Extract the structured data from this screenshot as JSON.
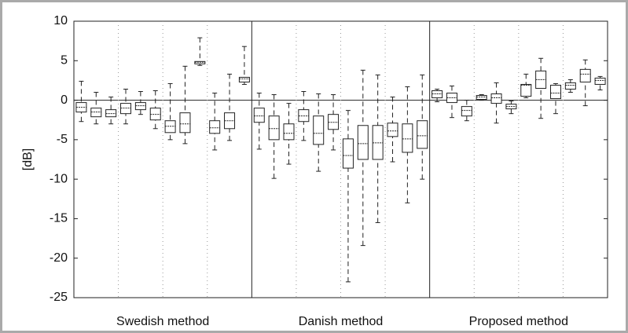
{
  "chart_data": {
    "type": "box",
    "ylabel": "[dB]",
    "ylim": [
      -25,
      10
    ],
    "yticks": [
      -25,
      -20,
      -15,
      -10,
      -5,
      0,
      5,
      10
    ],
    "reference_line": 0,
    "groups": [
      {
        "name": "Swedish method",
        "boxes": [
          {
            "min": -2.7,
            "q1": -1.5,
            "median": -0.9,
            "q3": -0.3,
            "max": 2.4
          },
          {
            "min": -3.0,
            "q1": -2.1,
            "median": -1.5,
            "q3": -1.0,
            "max": 1.0
          },
          {
            "min": -3.0,
            "q1": -2.1,
            "median": -1.7,
            "q3": -1.2,
            "max": 0.4
          },
          {
            "min": -3.0,
            "q1": -1.7,
            "median": -1.0,
            "q3": -0.4,
            "max": 1.4
          },
          {
            "min": -1.8,
            "q1": -1.2,
            "median": -0.7,
            "q3": -0.3,
            "max": 1.1
          },
          {
            "min": -3.6,
            "q1": -2.5,
            "median": -1.8,
            "q3": -1.0,
            "max": 1.2
          },
          {
            "min": -5.0,
            "q1": -4.1,
            "median": -3.3,
            "q3": -2.6,
            "max": 2.1
          },
          {
            "min": -5.5,
            "q1": -4.1,
            "median": -3.0,
            "q3": -1.6,
            "max": 4.3
          },
          {
            "min": 4.4,
            "q1": 4.6,
            "median": 4.8,
            "q3": 4.9,
            "max": 7.9
          },
          {
            "min": -6.3,
            "q1": -4.2,
            "median": -3.5,
            "q3": -2.6,
            "max": 0.9
          },
          {
            "min": -5.1,
            "q1": -3.6,
            "median": -2.6,
            "q3": -1.6,
            "max": 3.3
          },
          {
            "min": 2.0,
            "q1": 2.3,
            "median": 2.7,
            "q3": 2.9,
            "max": 6.8
          }
        ]
      },
      {
        "name": "Danish method",
        "boxes": [
          {
            "min": -6.2,
            "q1": -2.8,
            "median": -2.0,
            "q3": -1.0,
            "max": 0.9
          },
          {
            "min": -9.9,
            "q1": -5.0,
            "median": -3.6,
            "q3": -2.0,
            "max": 0.7
          },
          {
            "min": -8.1,
            "q1": -5.0,
            "median": -4.2,
            "q3": -3.0,
            "max": -0.4
          },
          {
            "min": -5.1,
            "q1": -2.7,
            "median": -2.0,
            "q3": -1.2,
            "max": 1.1
          },
          {
            "min": -9.0,
            "q1": -5.6,
            "median": -4.2,
            "q3": -2.0,
            "max": 0.8
          },
          {
            "min": -6.3,
            "q1": -3.7,
            "median": -2.8,
            "q3": -1.8,
            "max": 0.7
          },
          {
            "min": -23.0,
            "q1": -8.6,
            "median": -7.0,
            "q3": -4.9,
            "max": -1.3
          },
          {
            "min": -18.4,
            "q1": -7.5,
            "median": -5.5,
            "q3": -3.2,
            "max": 3.8
          },
          {
            "min": -15.5,
            "q1": -7.5,
            "median": -5.4,
            "q3": -3.2,
            "max": 3.2
          },
          {
            "min": -7.8,
            "q1": -4.6,
            "median": -3.9,
            "q3": -2.9,
            "max": 0.4
          },
          {
            "min": -13.0,
            "q1": -6.6,
            "median": -4.9,
            "q3": -3.0,
            "max": 1.7
          },
          {
            "min": -10.0,
            "q1": -6.1,
            "median": -4.5,
            "q3": -2.6,
            "max": 3.2
          }
        ]
      },
      {
        "name": "Proposed method",
        "boxes": [
          {
            "min": -0.2,
            "q1": 0.3,
            "median": 0.8,
            "q3": 1.2,
            "max": 1.4
          },
          {
            "min": -2.2,
            "q1": -0.3,
            "median": 0.3,
            "q3": 0.9,
            "max": 1.8
          },
          {
            "min": -2.6,
            "q1": -2.0,
            "median": -1.3,
            "q3": -0.8,
            "max": 0.0
          },
          {
            "min": 0.0,
            "q1": 0.1,
            "median": 0.4,
            "q3": 0.6,
            "max": 0.7
          },
          {
            "min": -2.9,
            "q1": -0.4,
            "median": 0.3,
            "q3": 0.8,
            "max": 2.2
          },
          {
            "min": -1.7,
            "q1": -1.1,
            "median": -0.8,
            "q3": -0.5,
            "max": -0.1
          },
          {
            "min": 0.3,
            "q1": 0.5,
            "median": 1.9,
            "q3": 2.0,
            "max": 3.3
          },
          {
            "min": -2.3,
            "q1": 1.5,
            "median": 2.6,
            "q3": 3.7,
            "max": 5.3
          },
          {
            "min": -1.7,
            "q1": 0.2,
            "median": 0.9,
            "q3": 1.9,
            "max": 2.1
          },
          {
            "min": 1.0,
            "q1": 1.4,
            "median": 1.9,
            "q3": 2.2,
            "max": 2.6
          },
          {
            "min": -0.7,
            "q1": 2.3,
            "median": 3.3,
            "q3": 3.9,
            "max": 5.1
          },
          {
            "min": 1.3,
            "q1": 2.0,
            "median": 2.5,
            "q3": 2.8,
            "max": 3.0
          }
        ]
      }
    ]
  }
}
